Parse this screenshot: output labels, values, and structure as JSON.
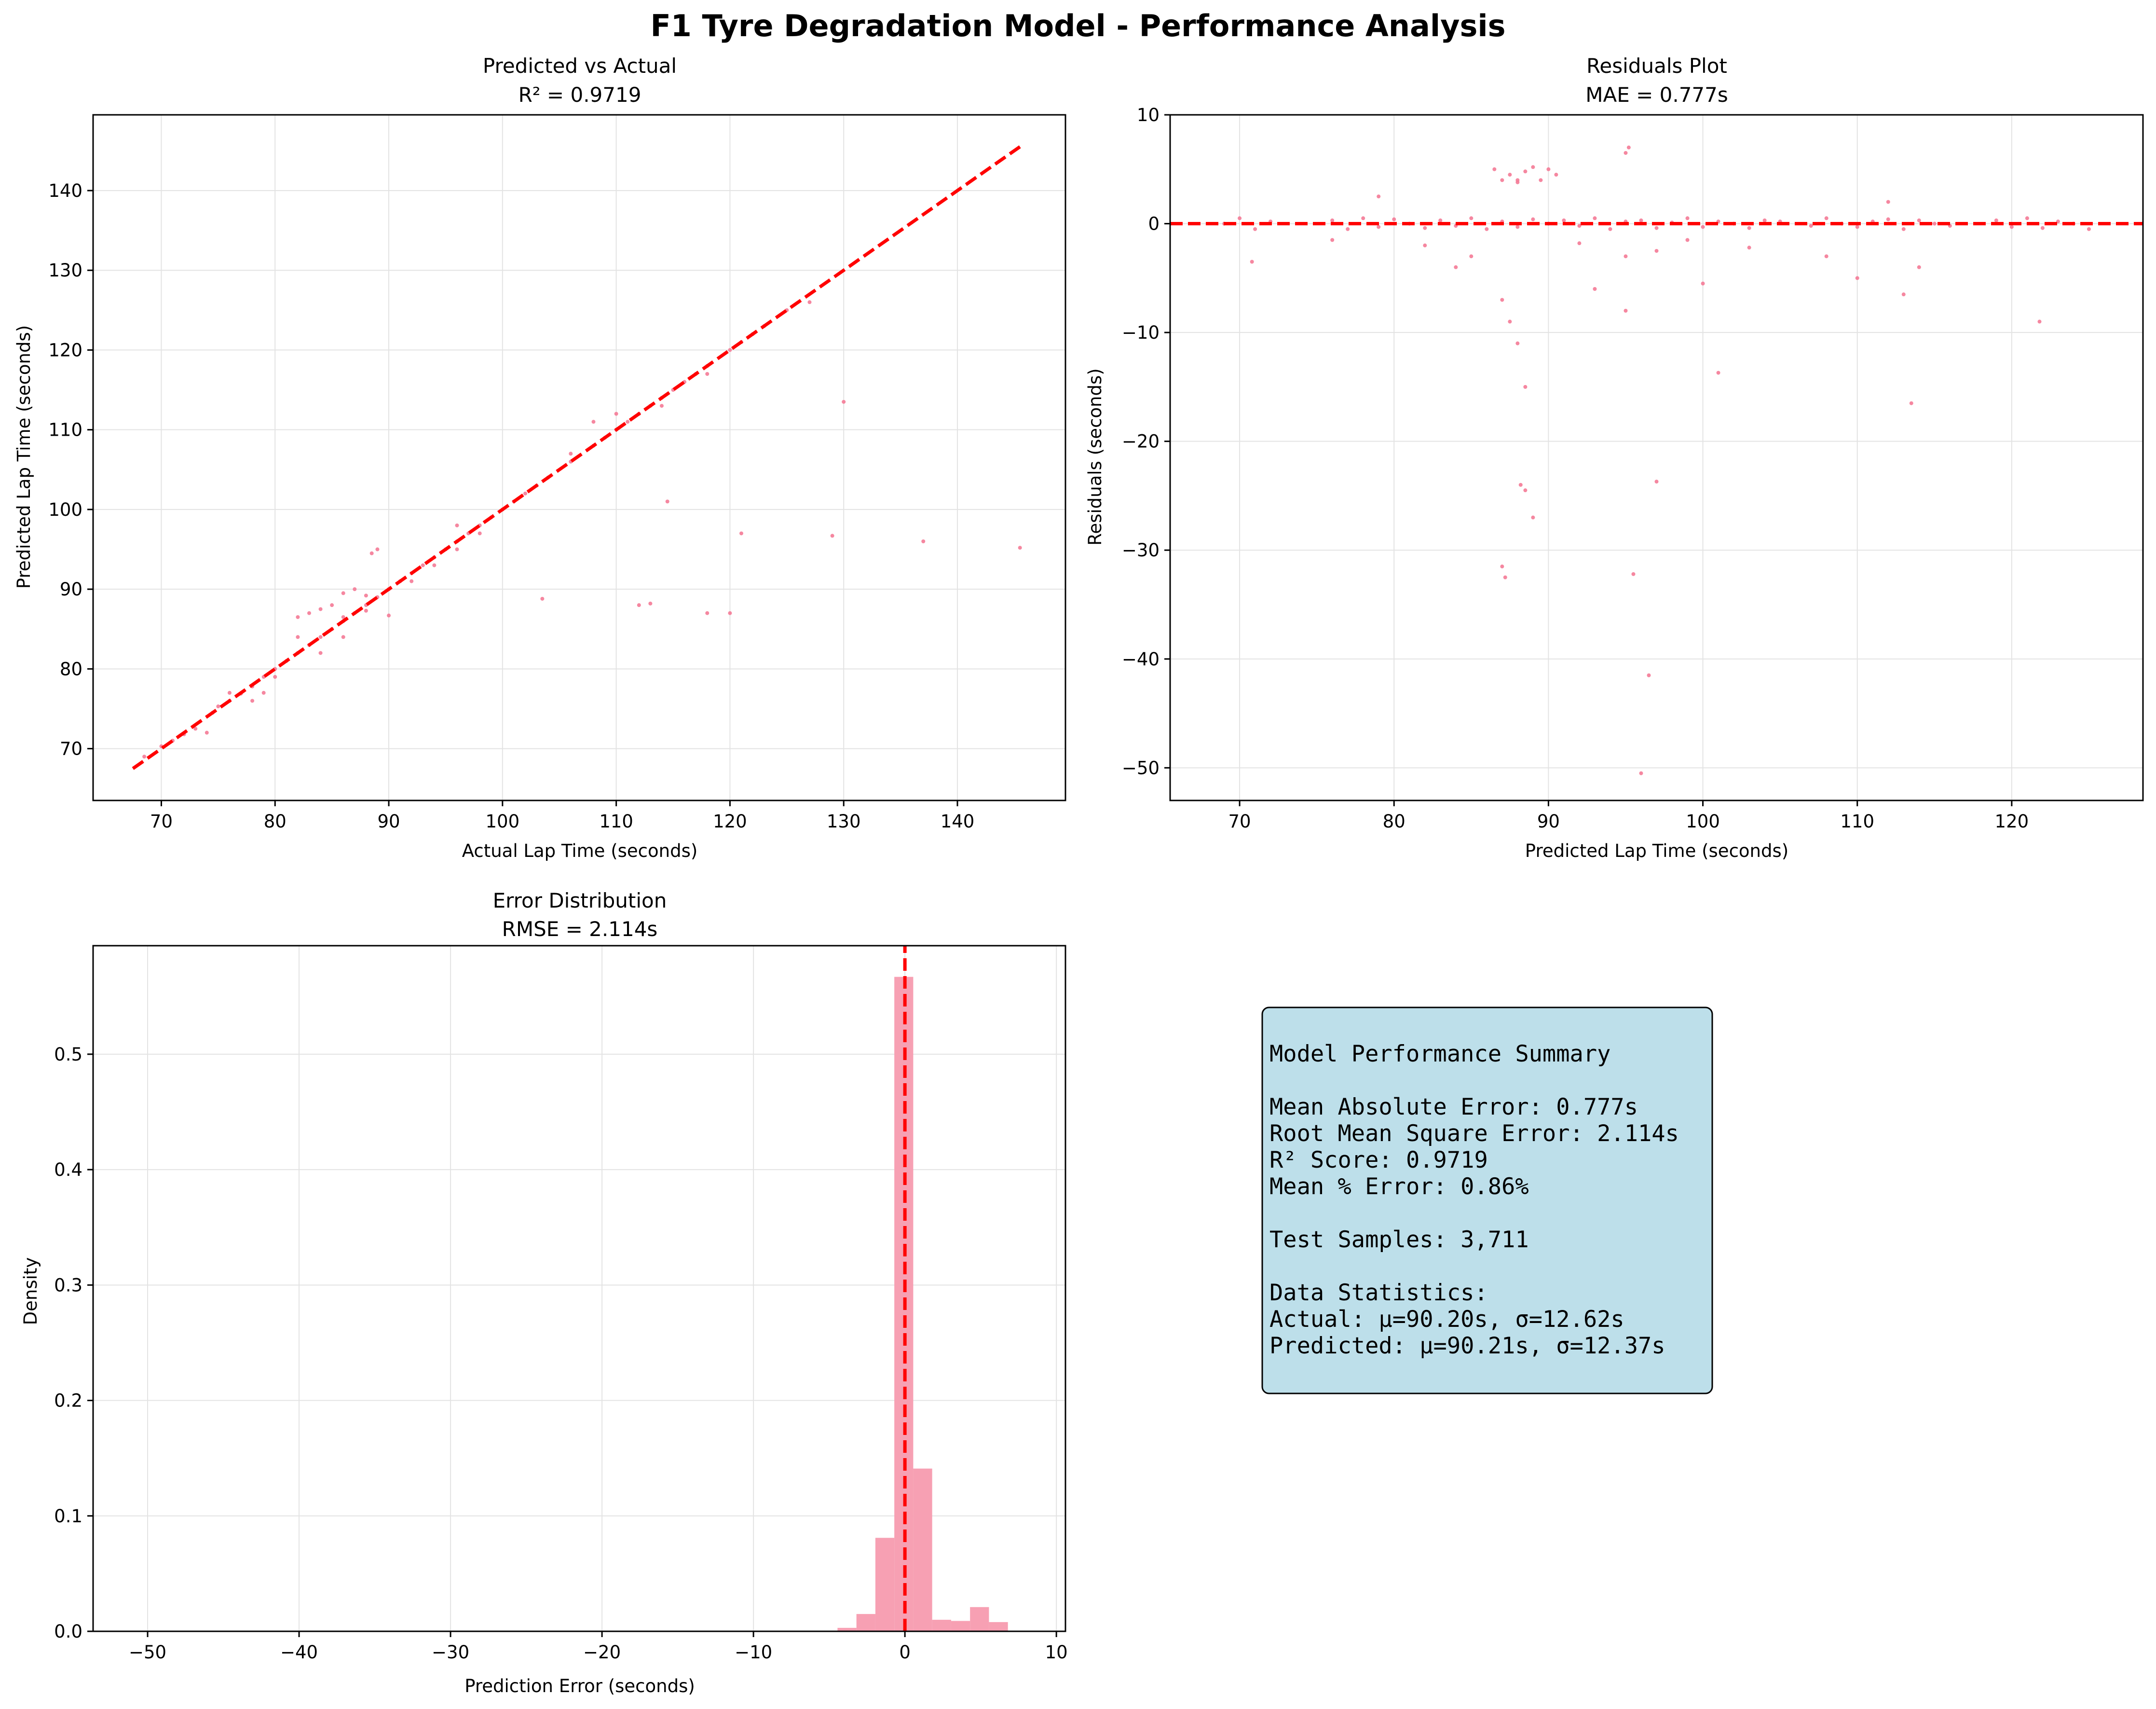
{
  "figure": {
    "title": "F1 Tyre Degradation Model - Performance Analysis",
    "colors": {
      "points": "#f47a96",
      "reference": "#ff0000",
      "bars": "#f7a0b3",
      "summary_box": "#bddfea"
    }
  },
  "chart_data": [
    {
      "type": "scatter",
      "title": "Predicted vs Actual",
      "subtitle": "R² = 0.9719",
      "xlabel": "Actual Lap Time (seconds)",
      "ylabel": "Predicted Lap Time (seconds)",
      "xlim": [
        64,
        149.5
      ],
      "ylim": [
        63.5,
        149.5
      ],
      "xticks": [
        70,
        80,
        90,
        100,
        110,
        120,
        130,
        140
      ],
      "yticks": [
        70,
        80,
        90,
        100,
        110,
        120,
        130,
        140
      ],
      "xtick_labels": [
        "70",
        "80",
        "90",
        "100",
        "110",
        "120",
        "130",
        "140"
      ],
      "ytick_labels": [
        "70",
        "80",
        "90",
        "100",
        "110",
        "120",
        "130",
        "140"
      ],
      "grid": true,
      "reference_line": {
        "x": [
          67.5,
          145.5
        ],
        "y": [
          67.5,
          145.5
        ]
      },
      "series": [
        {
          "x": [
            68.5,
            70,
            71,
            72,
            73,
            74.5,
            75,
            76,
            77,
            78,
            79,
            80,
            81,
            82,
            83,
            84,
            85,
            86,
            87,
            88,
            89,
            90,
            91,
            92,
            93,
            94,
            95,
            96,
            97,
            98,
            99,
            100,
            101,
            102,
            103,
            104,
            106,
            108,
            109,
            110,
            111,
            112,
            113,
            114,
            115,
            116,
            117,
            118,
            120,
            121,
            122,
            123,
            125,
            127,
            82,
            83,
            84,
            85,
            86,
            87,
            88,
            78,
            80,
            82,
            84,
            86,
            94,
            96,
            98,
            92,
            96,
            106,
            110,
            114,
            118,
            74,
            76,
            79,
            88.5,
            89,
            103.5,
            112,
            113,
            114.5,
            118,
            120,
            121,
            129,
            130,
            137,
            145.5,
            86,
            88,
            90,
            108
          ],
          "y": [
            69,
            70.3,
            71,
            71.8,
            72.5,
            74.5,
            75.3,
            76,
            76.9,
            77.8,
            79,
            80,
            81,
            82,
            83,
            84,
            85,
            86,
            87,
            88,
            89,
            90,
            91,
            92,
            93,
            94,
            95,
            96,
            97,
            98,
            99,
            100,
            101,
            102,
            103,
            104,
            106,
            108,
            109,
            110,
            111,
            112,
            113,
            114,
            115,
            116,
            117,
            118,
            120,
            121,
            122,
            123,
            125,
            126,
            86.5,
            87,
            87.5,
            88,
            89.5,
            90,
            89.2,
            76,
            79,
            84,
            82,
            84,
            93,
            95,
            97,
            91,
            98,
            107,
            112,
            113,
            117,
            72,
            77,
            77,
            94.5,
            95,
            88.8,
            88,
            88.2,
            101,
            87,
            87,
            97,
            96.7,
            113.5,
            96,
            95.2,
            86.5,
            87.3,
            86.7,
            111
          ],
          "r": 4
        }
      ]
    },
    {
      "type": "scatter",
      "title": "Residuals Plot",
      "subtitle": "MAE = 0.777s",
      "xlabel": "Predicted Lap Time (seconds)",
      "ylabel": "Residuals (seconds)",
      "xlim": [
        65.5,
        128.5
      ],
      "ylim": [
        -53,
        10
      ],
      "xticks": [
        70,
        80,
        90,
        100,
        110,
        120
      ],
      "yticks": [
        10,
        0,
        -10,
        -20,
        -30,
        -40,
        -50
      ],
      "xtick_labels": [
        "70",
        "80",
        "90",
        "100",
        "110",
        "120"
      ],
      "ytick_labels": [
        "10",
        "0",
        "−10",
        "−20",
        "−30",
        "−40",
        "−50"
      ],
      "grid": true,
      "reference_line": {
        "x": [
          65.5,
          128.5
        ],
        "y": [
          0,
          0
        ]
      },
      "series": [
        {
          "x": [
            69,
            70,
            71,
            72,
            76,
            77,
            78,
            79,
            80,
            81,
            82,
            83,
            84,
            85,
            86,
            87,
            88,
            89,
            90,
            91,
            92,
            93,
            94,
            95,
            96,
            97,
            98,
            99,
            100,
            101,
            102,
            103,
            104,
            105,
            107,
            108,
            109,
            110,
            111,
            112,
            113,
            114,
            115,
            116,
            119,
            120,
            121,
            122,
            123,
            124,
            125,
            86.5,
            87,
            87.5,
            88,
            88.5,
            89,
            89.5,
            90,
            90.5,
            88,
            95,
            95.2,
            70.8,
            76,
            79,
            82,
            84,
            85,
            92,
            97,
            99,
            103,
            110,
            112,
            113,
            114,
            108,
            87,
            87.5,
            88,
            88.2,
            88.5,
            87,
            87.2,
            88.5,
            89,
            93,
            95,
            96.5,
            96,
            97,
            95.5,
            95,
            100,
            101,
            113.5,
            121.8
          ],
          "y": [
            0,
            0.5,
            -0.5,
            0.2,
            0.3,
            -0.5,
            0.5,
            -0.3,
            0.4,
            0,
            -0.4,
            0.3,
            -0.2,
            0.5,
            -0.5,
            0.2,
            -0.3,
            0.4,
            0,
            0.3,
            -0.2,
            0.5,
            -0.5,
            0.2,
            0.3,
            -0.4,
            0.1,
            0.5,
            -0.3,
            0.2,
            0,
            -0.4,
            0.3,
            0.2,
            -0.2,
            0.5,
            0,
            -0.3,
            0.2,
            0.4,
            -0.5,
            0.3,
            0,
            -0.2,
            0.3,
            -0.3,
            0.5,
            -0.4,
            0.2,
            0,
            -0.5,
            5,
            4,
            4.5,
            3.8,
            4.8,
            5.2,
            4,
            5,
            4.5,
            4,
            6.5,
            7,
            -3.5,
            -1.5,
            2.5,
            -2,
            -4,
            -3,
            -1.8,
            -2.5,
            -1.5,
            -2.2,
            -5,
            2,
            -6.5,
            -4,
            -3,
            -7,
            -9,
            -11,
            -24,
            -24.5,
            -31.5,
            -32.5,
            -15,
            -27,
            -6,
            -8,
            -41.5,
            -50.5,
            -23.7,
            -32.2,
            -3,
            -5.5,
            -13.7,
            -16.5,
            -9
          ],
          "r": 4
        }
      ]
    },
    {
      "type": "bar",
      "title": "Error Distribution",
      "subtitle": "RMSE = 2.114s",
      "xlabel": "Prediction Error (seconds)",
      "ylabel": "Density",
      "xlim": [
        -53.6,
        10.6
      ],
      "ylim": [
        0,
        0.594
      ],
      "xticks": [
        -50,
        -40,
        -30,
        -20,
        -10,
        0,
        10
      ],
      "yticks": [
        0.0,
        0.1,
        0.2,
        0.3,
        0.4,
        0.5
      ],
      "xtick_labels": [
        "−50",
        "−40",
        "−30",
        "−20",
        "−10",
        "0",
        "10"
      ],
      "ytick_labels": [
        "0.0",
        "0.1",
        "0.2",
        "0.3",
        "0.4",
        "0.5"
      ],
      "grid": true,
      "bin_edges": [
        -4.45,
        -3.2,
        -1.95,
        -0.7,
        0.55,
        1.8,
        3.05,
        4.3,
        5.55,
        6.8
      ],
      "values": [
        0.003,
        0.015,
        0.081,
        0.567,
        0.141,
        0.01,
        0.009,
        0.021,
        0.008
      ],
      "reference_line": {
        "x": [
          0,
          0
        ],
        "y": [
          0,
          0.594
        ]
      }
    }
  ],
  "summary": {
    "title": "Model Performance Summary",
    "lines": [
      "Mean Absolute Error: 0.777s",
      "Root Mean Square Error: 2.114s",
      "R² Score: 0.9719",
      "Mean % Error: 0.86%",
      "",
      "Test Samples: 3,711",
      "",
      "Data Statistics:",
      "Actual: μ=90.20s, σ=12.62s",
      "Predicted: μ=90.21s, σ=12.37s"
    ]
  }
}
